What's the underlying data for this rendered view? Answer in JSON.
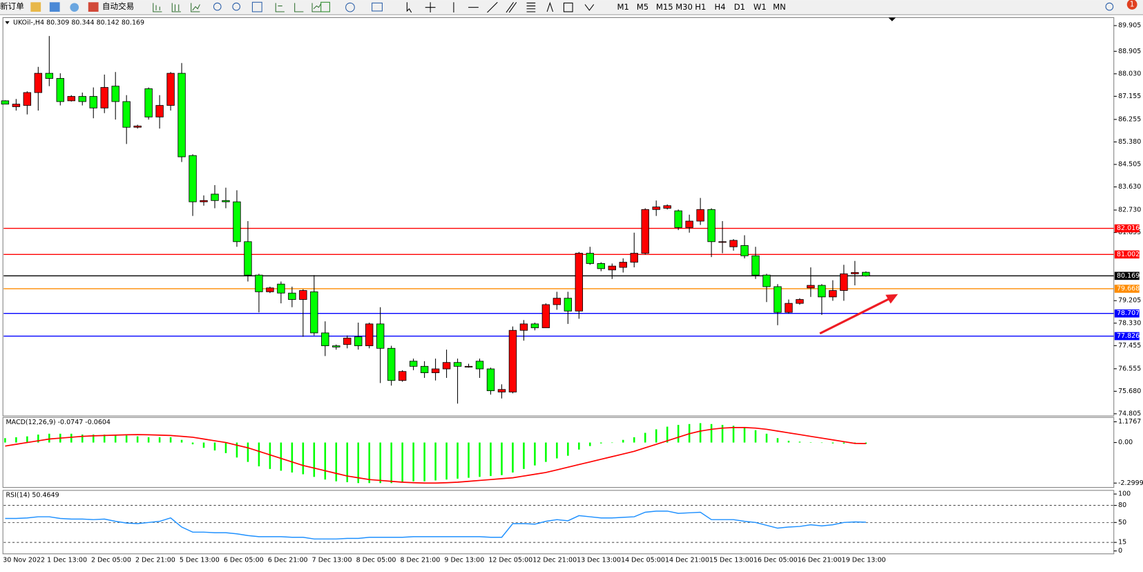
{
  "toolbar": {
    "buttons": [
      "新订单",
      "自动交易"
    ],
    "timeframes": [
      "M1",
      "M5",
      "M15",
      "M30",
      "H1",
      "H4",
      "D1",
      "W1",
      "MN"
    ],
    "badge": "1"
  },
  "chart_data": [
    {
      "type": "candlestick",
      "title": "UKOil-,H4  80.309 80.344 80.142 80.169",
      "up_color": "#ff0000",
      "down_color": "#00ff00",
      "categories": [
        "30 Nov 2022",
        null,
        null,
        null,
        "1 Dec 13:00",
        null,
        null,
        null,
        "2 Dec 05:00",
        null,
        null,
        null,
        "2 Dec 21:00",
        null,
        null,
        null,
        "5 Dec 13:00",
        null,
        null,
        null,
        "6 Dec 05:00",
        null,
        null,
        null,
        "6 Dec 21:00",
        null,
        null,
        null,
        "7 Dec 13:00",
        null,
        null,
        null,
        "8 Dec 05:00",
        null,
        null,
        null,
        "8 Dec 21:00",
        null,
        null,
        null,
        "9 Dec 13:00",
        null,
        null,
        null,
        "12 Dec 05:00",
        null,
        null,
        null,
        "12 Dec 21:00",
        null,
        null,
        null,
        "13 Dec 13:00",
        null,
        null,
        null,
        "14 Dec 05:00",
        null,
        null,
        null,
        "14 Dec 21:00",
        null,
        null,
        null,
        "15 Dec 13:00",
        null,
        null,
        null,
        "16 Dec 05:00",
        null,
        null,
        null,
        "16 Dec 21:00",
        null,
        null,
        null,
        "19 Dec 13:00",
        null,
        null
      ],
      "open": [
        86.98,
        86.75,
        86.8,
        87.3,
        88.05,
        87.85,
        86.98,
        87.15,
        87.15,
        86.7,
        87.55,
        86.95,
        85.95,
        87.45,
        86.35,
        86.8,
        88.05,
        84.85,
        83.05,
        83.35,
        83.1,
        83.05,
        81.5,
        80.2,
        79.55,
        79.85,
        79.5,
        79.25,
        79.55,
        77.95,
        77.45,
        77.5,
        77.8,
        77.45,
        78.3,
        77.35,
        76.1,
        76.85,
        76.65,
        76.4,
        76.55,
        76.8,
        76.65,
        76.85,
        76.55,
        75.65,
        75.65,
        78.05,
        78.3,
        78.15,
        79.05,
        79.3,
        78.8,
        81.05,
        80.65,
        80.4,
        80.5,
        80.7,
        81.05,
        82.75,
        82.8,
        82.7,
        82.05,
        82.3,
        82.75,
        81.5,
        81.3,
        81.35,
        80.95,
        80.2,
        79.75,
        78.75,
        79.1,
        79.7,
        79.8,
        79.35,
        79.6,
        80.25,
        80.309
      ],
      "high": [
        87.0,
        87.05,
        87.35,
        88.3,
        89.5,
        88.05,
        87.2,
        87.3,
        87.5,
        88.0,
        88.1,
        87.2,
        86.05,
        87.5,
        87.2,
        88.1,
        88.45,
        84.9,
        83.3,
        83.7,
        83.6,
        83.5,
        82.3,
        80.25,
        79.75,
        79.95,
        79.75,
        79.65,
        80.2,
        78.4,
        77.5,
        77.85,
        78.35,
        78.35,
        78.95,
        77.45,
        76.5,
        76.95,
        76.85,
        76.95,
        77.3,
        76.95,
        76.75,
        76.95,
        76.6,
        75.95,
        78.2,
        78.45,
        78.35,
        79.1,
        79.55,
        79.55,
        81.1,
        81.3,
        80.7,
        80.65,
        80.85,
        81.85,
        82.8,
        83.1,
        82.95,
        82.75,
        82.55,
        83.2,
        82.8,
        82.3,
        81.6,
        81.75,
        81.3,
        80.25,
        79.85,
        79.25,
        79.3,
        80.5,
        79.85,
        80.0,
        80.6,
        80.75,
        80.344
      ],
      "low": [
        86.9,
        86.6,
        86.45,
        86.6,
        87.55,
        86.8,
        86.95,
        86.8,
        86.3,
        86.5,
        86.25,
        85.3,
        85.9,
        86.25,
        85.9,
        86.6,
        84.6,
        82.5,
        82.9,
        82.8,
        82.8,
        81.3,
        79.95,
        78.75,
        79.5,
        79.1,
        78.95,
        77.8,
        77.85,
        77.05,
        77.3,
        77.35,
        77.3,
        77.35,
        76.0,
        75.9,
        76.05,
        76.5,
        76.2,
        76.1,
        76.2,
        75.2,
        76.6,
        76.2,
        75.55,
        75.4,
        75.6,
        77.65,
        78.05,
        78.15,
        78.85,
        78.3,
        78.5,
        80.6,
        80.35,
        80.05,
        80.3,
        80.5,
        81.0,
        82.5,
        82.75,
        81.95,
        81.85,
        82.15,
        80.9,
        81.05,
        81.15,
        80.85,
        80.05,
        79.15,
        78.25,
        78.7,
        79.05,
        79.35,
        78.65,
        79.2,
        79.2,
        79.8,
        80.142
      ],
      "close": [
        86.85,
        86.85,
        87.3,
        88.05,
        87.85,
        86.95,
        87.15,
        86.95,
        86.7,
        87.5,
        86.95,
        85.95,
        86.0,
        86.35,
        86.8,
        88.05,
        84.8,
        83.05,
        83.1,
        83.1,
        83.05,
        81.5,
        80.2,
        79.55,
        79.7,
        79.5,
        79.25,
        79.6,
        77.95,
        77.45,
        77.4,
        77.75,
        77.45,
        78.3,
        77.35,
        76.1,
        76.45,
        76.65,
        76.4,
        76.55,
        76.8,
        76.65,
        76.65,
        76.55,
        75.7,
        75.75,
        78.05,
        78.3,
        78.15,
        79.05,
        79.3,
        78.8,
        81.05,
        80.65,
        80.45,
        80.55,
        80.7,
        81.05,
        82.75,
        82.85,
        82.9,
        82.05,
        82.3,
        82.75,
        81.5,
        81.5,
        81.55,
        80.95,
        80.2,
        79.75,
        78.75,
        79.1,
        79.25,
        79.8,
        79.35,
        79.6,
        80.25,
        80.3,
        80.169
      ],
      "levels": [
        {
          "value": 82.016,
          "color": "#ff0000"
        },
        {
          "value": 81.002,
          "color": "#ff0000"
        },
        {
          "value": 80.169,
          "color": "#000000"
        },
        {
          "value": 79.668,
          "color": "#ff8c00"
        },
        {
          "value": 78.707,
          "color": "#0000ff"
        },
        {
          "value": 77.826,
          "color": "#0000ff"
        }
      ],
      "ylim": [
        74.805,
        89.905
      ],
      "yticks": [
        89.905,
        88.905,
        {
          "value": 88.03,
          "label": "88.030"
        },
        87.155,
        86.255,
        {
          "value": 85.38,
          "label": "85.380"
        },
        84.505,
        {
          "value": 83.63,
          "label": "83.630"
        },
        {
          "value": 82.73,
          "label": "82.730"
        },
        81.855,
        79.205,
        {
          "value": 78.33,
          "label": "78.330"
        },
        77.455,
        76.555,
        {
          "value": 75.68,
          "label": "75.680"
        },
        74.805
      ]
    },
    {
      "type": "macd",
      "title": "MACD(12,26,9) -0.0747 -0.0604",
      "hist_color": "#00ff00",
      "signal_color": "#ff0000",
      "histogram": [
        0.25,
        0.3,
        0.35,
        0.45,
        0.5,
        0.5,
        0.5,
        0.45,
        0.45,
        0.45,
        0.45,
        0.4,
        0.35,
        0.3,
        0.3,
        0.3,
        0.15,
        -0.1,
        -0.3,
        -0.45,
        -0.6,
        -0.85,
        -1.1,
        -1.35,
        -1.5,
        -1.6,
        -1.7,
        -1.8,
        -1.95,
        -2.1,
        -2.2,
        -2.25,
        -2.3,
        -2.3,
        -2.3,
        -2.3,
        -2.25,
        -2.2,
        -2.2,
        -2.15,
        -2.1,
        -2.05,
        -2.0,
        -1.95,
        -1.9,
        -1.85,
        -1.7,
        -1.5,
        -1.3,
        -1.1,
        -0.9,
        -0.75,
        -0.4,
        -0.2,
        -0.05,
        0.0,
        0.15,
        0.3,
        0.55,
        0.75,
        0.9,
        1.0,
        1.05,
        1.1,
        1.05,
        1.0,
        0.95,
        0.85,
        0.7,
        0.5,
        0.25,
        0.1,
        0.05,
        0.02,
        -0.02,
        -0.05,
        -0.06,
        -0.07,
        -0.0747
      ],
      "signal": [
        -0.2,
        -0.1,
        0.0,
        0.1,
        0.2,
        0.25,
        0.3,
        0.35,
        0.38,
        0.4,
        0.42,
        0.44,
        0.45,
        0.44,
        0.42,
        0.4,
        0.35,
        0.3,
        0.2,
        0.1,
        0.0,
        -0.15,
        -0.3,
        -0.5,
        -0.7,
        -0.9,
        -1.1,
        -1.3,
        -1.45,
        -1.6,
        -1.75,
        -1.9,
        -2.0,
        -2.1,
        -2.15,
        -2.2,
        -2.25,
        -2.28,
        -2.3,
        -2.3,
        -2.28,
        -2.25,
        -2.2,
        -2.15,
        -2.1,
        -2.05,
        -2.0,
        -1.9,
        -1.8,
        -1.7,
        -1.55,
        -1.4,
        -1.25,
        -1.1,
        -0.95,
        -0.8,
        -0.65,
        -0.5,
        -0.3,
        -0.1,
        0.1,
        0.3,
        0.5,
        0.65,
        0.75,
        0.82,
        0.85,
        0.85,
        0.82,
        0.75,
        0.65,
        0.55,
        0.45,
        0.35,
        0.25,
        0.15,
        0.05,
        -0.05,
        -0.0604
      ],
      "ylim": [
        -2.2999,
        1.1767
      ],
      "yticks": [
        1.1767,
        {
          "value": 0,
          "label": "0.00"
        },
        -2.2999
      ]
    },
    {
      "type": "line",
      "title": "RSI(14) 50.4649",
      "color": "#1e90ff",
      "values": [
        57,
        57,
        58,
        60,
        60,
        57,
        56,
        56,
        55,
        56,
        52,
        49,
        48,
        50,
        52,
        58,
        42,
        33,
        33,
        32,
        32,
        30,
        27,
        25,
        25,
        25,
        24,
        24,
        21,
        21,
        21,
        22,
        22,
        24,
        24,
        24,
        24,
        25,
        25,
        25,
        25,
        25,
        25,
        25,
        24,
        24,
        48,
        48,
        47,
        52,
        55,
        53,
        62,
        60,
        58,
        58,
        59,
        60,
        68,
        70,
        70,
        66,
        67,
        68,
        55,
        55,
        55,
        52,
        50,
        45,
        40,
        42,
        43,
        46,
        44,
        46,
        50,
        51,
        50.4649
      ],
      "ylim": [
        0,
        100
      ],
      "yticks": [
        100,
        80,
        50,
        15,
        0
      ],
      "grid_ticks": [
        80,
        50,
        15
      ]
    }
  ]
}
